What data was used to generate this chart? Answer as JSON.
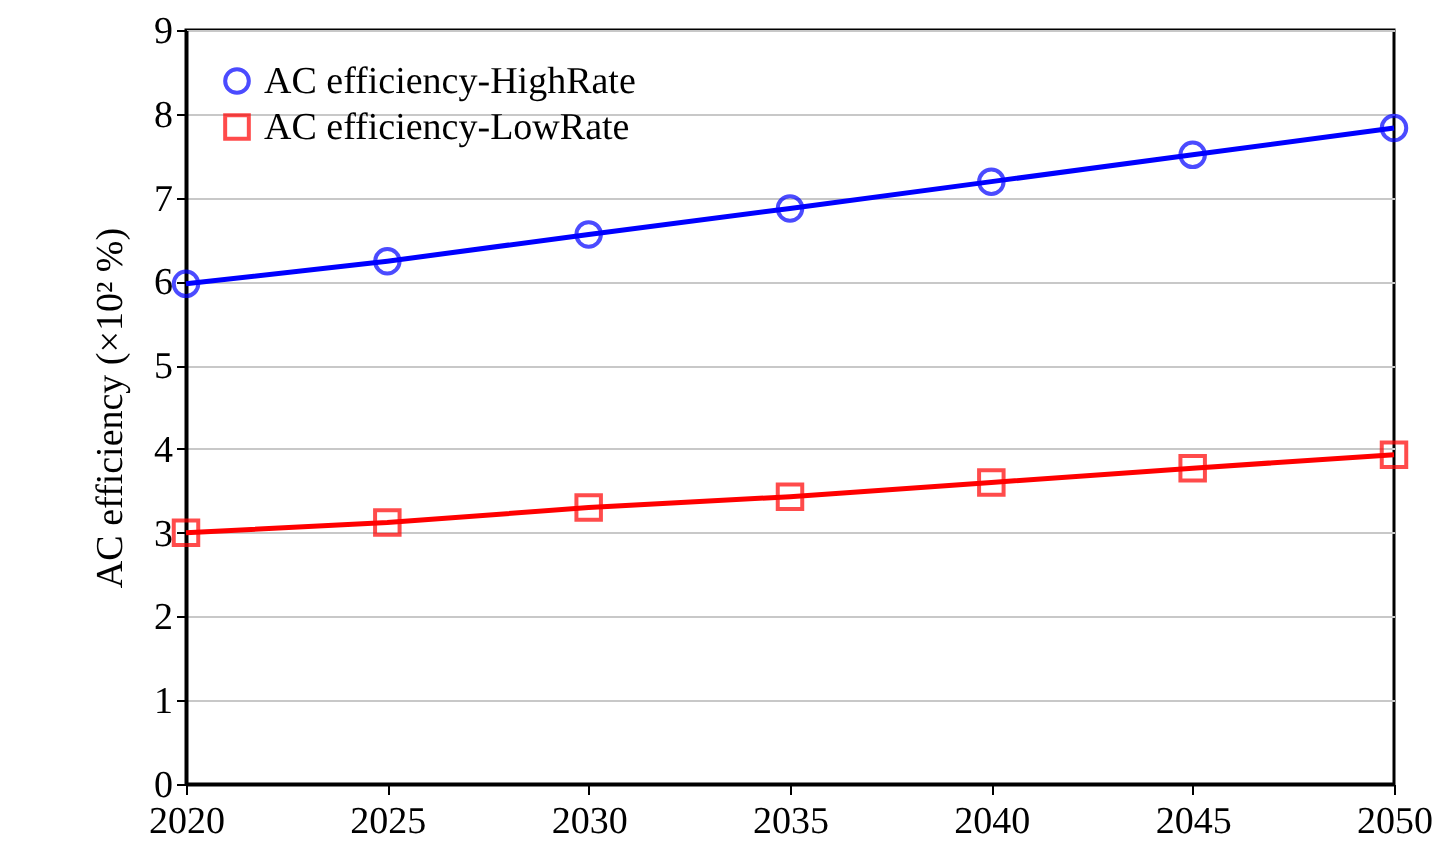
{
  "chart_data": {
    "type": "line",
    "ylabel": "AC efficiency (×10² %)",
    "x": [
      2020,
      2025,
      2030,
      2035,
      2040,
      2045,
      2050
    ],
    "series": [
      {
        "name": "AC efficiency-HighRate",
        "color": "#0000ff",
        "marker": "circle",
        "values": [
          5.97,
          6.24,
          6.56,
          6.87,
          7.19,
          7.51,
          7.83
        ]
      },
      {
        "name": "AC efficiency-LowRate",
        "color": "#ff0000",
        "marker": "square",
        "values": [
          3.0,
          3.12,
          3.3,
          3.43,
          3.6,
          3.77,
          3.93
        ]
      }
    ],
    "xlim": [
      2020,
      2050
    ],
    "xticks": [
      2020,
      2025,
      2030,
      2035,
      2040,
      2045,
      2050
    ],
    "ylim": [
      0,
      9
    ],
    "yticks": [
      0,
      1,
      2,
      3,
      4,
      5,
      6,
      7,
      8,
      9
    ],
    "grid": "y",
    "legend": "top left",
    "line_style": "solid"
  }
}
